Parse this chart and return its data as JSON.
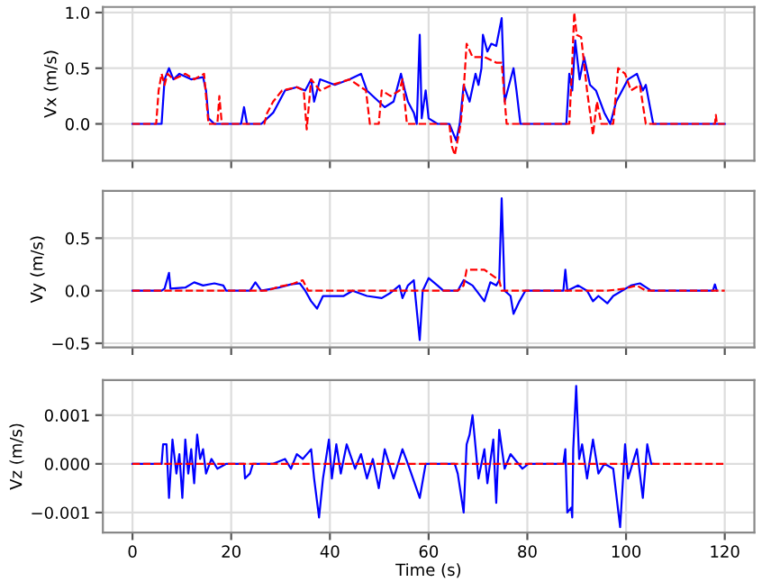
{
  "chart_data": [
    {
      "type": "line",
      "ylabel": "Vx (m/s)",
      "xlim": [
        -6,
        126
      ],
      "xticks": [
        0,
        20,
        40,
        60,
        80,
        100,
        120
      ],
      "ylim": [
        -0.33,
        1.05
      ],
      "yticks": [
        {
          "value": 0.0,
          "label": "0.0"
        },
        {
          "value": 0.5,
          "label": "0.5"
        },
        {
          "value": 1.0,
          "label": "1.0"
        }
      ],
      "grid": true,
      "tick_labels": "y",
      "series": [
        {
          "color": "#0000ff",
          "line_style": "solid",
          "x": [
            0,
            5.9,
            6.5,
            7.4,
            8.3,
            9.5,
            11.9,
            14.3,
            14.9,
            15.4,
            16.6,
            22.0,
            22.6,
            23.2,
            26.1,
            28.5,
            30.9,
            33.3,
            35.0,
            35.6,
            36.2,
            36.8,
            38.0,
            41.0,
            44.0,
            46.3,
            47.5,
            49.9,
            51.1,
            52.9,
            53.5,
            54.4,
            55.2,
            55.8,
            57.0,
            57.6,
            58.2,
            58.6,
            59.4,
            60.0,
            61.8,
            64.2,
            65.6,
            66.3,
            67.1,
            68.3,
            69.5,
            70.1,
            70.7,
            71.0,
            71.9,
            72.7,
            73.7,
            74.8,
            75.4,
            76.6,
            77.2,
            77.8,
            78.6,
            87.9,
            88.5,
            89.1,
            89.7,
            90.6,
            91.5,
            92.7,
            93.9,
            95.6,
            96.8,
            98.0,
            99.2,
            100.4,
            102.2,
            103.4,
            104.0,
            105.5,
            120
          ],
          "values": [
            0,
            0,
            0.4,
            0.5,
            0.4,
            0.45,
            0.4,
            0.42,
            0.3,
            0.05,
            0.0,
            0.0,
            0.15,
            0.0,
            0.0,
            0.1,
            0.3,
            0.33,
            0.3,
            0.35,
            0.4,
            0.2,
            0.4,
            0.35,
            0.4,
            0.45,
            0.3,
            0.2,
            0.15,
            0.2,
            0.3,
            0.45,
            0.3,
            0.2,
            0.1,
            0.0,
            0.8,
            0.05,
            0.3,
            0.05,
            0.0,
            0.0,
            -0.15,
            0.0,
            0.35,
            0.2,
            0.45,
            0.35,
            0.5,
            0.8,
            0.65,
            0.72,
            0.7,
            0.95,
            0.2,
            0.4,
            0.5,
            0.3,
            0.0,
            0.0,
            0.45,
            0.3,
            0.75,
            0.4,
            0.6,
            0.35,
            0.3,
            0.1,
            0.0,
            0.2,
            0.3,
            0.4,
            0.45,
            0.3,
            0.35,
            0.0,
            0.0
          ]
        },
        {
          "color": "#ff0000",
          "line_style": "dashed",
          "x": [
            0,
            4.8,
            5.3,
            5.9,
            6.5,
            7.1,
            8.3,
            10.7,
            12.5,
            14.5,
            15.4,
            17.2,
            17.6,
            18.1,
            26.7,
            27.3,
            28.5,
            30.3,
            33.3,
            34.7,
            35.3,
            36.2,
            38.0,
            40.4,
            44.0,
            47.3,
            48.1,
            49.9,
            50.5,
            52.3,
            54.1,
            54.7,
            55.6,
            64.2,
            64.7,
            65.3,
            66.5,
            67.1,
            67.7,
            68.9,
            71.3,
            73.7,
            74.8,
            75.8,
            88.5,
            89.1,
            89.5,
            90.0,
            90.9,
            92.1,
            93.3,
            94.1,
            95.0,
            97.4,
            98.4,
            99.8,
            101.0,
            102.8,
            104.0,
            118.0,
            118.2,
            118.4,
            120
          ],
          "values": [
            0,
            0,
            0.3,
            0.45,
            0.35,
            0.45,
            0.4,
            0.45,
            0.4,
            0.45,
            0.0,
            0.0,
            0.25,
            0.0,
            0.0,
            0.1,
            0.2,
            0.3,
            0.33,
            0.3,
            -0.05,
            0.4,
            0.3,
            0.35,
            0.4,
            0.3,
            0.0,
            0.0,
            0.3,
            0.25,
            0.3,
            0.4,
            0.0,
            0.0,
            -0.2,
            -0.28,
            0.0,
            0.3,
            0.72,
            0.6,
            0.6,
            0.55,
            0.55,
            0.0,
            0.0,
            0.55,
            1.0,
            0.8,
            0.78,
            0.3,
            -0.1,
            0.2,
            0.0,
            0.0,
            0.5,
            0.45,
            0.3,
            0.35,
            0.0,
            0.0,
            0.08,
            0.0,
            0.0
          ]
        }
      ]
    },
    {
      "type": "line",
      "ylabel": "Vy (m/s)",
      "xlim": [
        -6,
        126
      ],
      "xticks": [
        0,
        20,
        40,
        60,
        80,
        100,
        120
      ],
      "ylim": [
        -0.54,
        0.95
      ],
      "yticks": [
        {
          "value": -0.5,
          "label": "−0.5"
        },
        {
          "value": 0.0,
          "label": "0.0"
        },
        {
          "value": 0.5,
          "label": "0.5"
        }
      ],
      "grid": true,
      "tick_labels": "y",
      "series": [
        {
          "color": "#0000ff",
          "line_style": "solid",
          "x": [
            0,
            5.9,
            6.5,
            7.4,
            7.7,
            10.7,
            12.5,
            14.3,
            16.6,
            18.4,
            19.0,
            23.8,
            24.9,
            26.1,
            29.7,
            32.1,
            33.9,
            35.0,
            36.2,
            37.4,
            38.6,
            41.0,
            42.8,
            44.6,
            47.5,
            50.5,
            52.3,
            54.1,
            54.7,
            55.8,
            57.0,
            58.2,
            58.8,
            60.0,
            61.8,
            63.0,
            65.9,
            67.1,
            68.9,
            71.3,
            72.5,
            73.7,
            74.3,
            74.8,
            75.4,
            76.6,
            77.2,
            78.4,
            79.6,
            87.3,
            87.7,
            88.1,
            90.3,
            92.1,
            93.3,
            94.4,
            96.2,
            97.4,
            101.0,
            102.8,
            105.1,
            117.6,
            118.0,
            118.4
          ],
          "values": [
            0,
            0,
            0.02,
            0.17,
            0.02,
            0.03,
            0.08,
            0.05,
            0.07,
            0.05,
            0.0,
            0.0,
            0.08,
            0.0,
            0.03,
            0.06,
            0.07,
            0.0,
            -0.1,
            -0.17,
            -0.05,
            -0.05,
            -0.05,
            0.0,
            -0.05,
            -0.07,
            -0.02,
            0.05,
            -0.07,
            0.05,
            0.1,
            -0.47,
            0.0,
            0.12,
            0.05,
            0.0,
            0.0,
            0.1,
            0.05,
            -0.1,
            0.08,
            0.05,
            0.1,
            0.88,
            0.0,
            -0.05,
            -0.22,
            -0.1,
            0.0,
            0.0,
            0.2,
            0.0,
            0.05,
            0.0,
            -0.1,
            -0.05,
            -0.12,
            -0.05,
            0.05,
            0.07,
            0.0,
            0.0,
            0.06,
            0.0
          ]
        },
        {
          "color": "#ff0000",
          "line_style": "dashed",
          "x": [
            0,
            27.3,
            29.7,
            32.1,
            34.5,
            35.6,
            65.9,
            67.1,
            67.7,
            71.3,
            73.7,
            74.3,
            74.8,
            96.2,
            99.8,
            102.2,
            104.0,
            120
          ],
          "values": [
            0,
            0,
            0.04,
            0.06,
            0.1,
            0.0,
            0.0,
            0.05,
            0.2,
            0.2,
            0.12,
            0.1,
            0.0,
            0.0,
            0.02,
            0.05,
            0.0,
            0.0
          ]
        }
      ]
    },
    {
      "type": "line",
      "ylabel": "Vz (m/s)",
      "xlabel": "Time (s)",
      "xlim": [
        -6,
        126
      ],
      "xticks": [
        0,
        20,
        40,
        60,
        80,
        100,
        120
      ],
      "ylim": [
        -0.00141,
        0.00172
      ],
      "yticks": [
        {
          "value": -0.001,
          "label": "−0.001"
        },
        {
          "value": 0.0,
          "label": "0.000"
        },
        {
          "value": 0.001,
          "label": "0.001"
        }
      ],
      "grid": true,
      "series": [
        {
          "color": "#0000ff",
          "line_style": "solid",
          "x": [
            0,
            5.9,
            6.2,
            6.9,
            7.4,
            8.1,
            8.9,
            9.5,
            10.1,
            10.7,
            11.3,
            11.9,
            12.5,
            13.1,
            13.7,
            14.3,
            14.9,
            16.0,
            17.2,
            19.0,
            22.6,
            22.8,
            23.8,
            24.4,
            28.5,
            30.9,
            32.1,
            33.3,
            34.5,
            36.2,
            36.8,
            37.8,
            38.6,
            39.8,
            40.4,
            41.3,
            42.2,
            43.4,
            45.1,
            46.3,
            47.5,
            48.7,
            49.9,
            51.1,
            52.9,
            54.7,
            55.8,
            58.2,
            59.4,
            65.3,
            65.9,
            67.1,
            67.7,
            68.3,
            68.9,
            70.1,
            71.3,
            71.9,
            73.1,
            73.7,
            74.3,
            75.4,
            76.6,
            79.0,
            80.2,
            87.3,
            87.7,
            88.1,
            88.9,
            89.1,
            89.3,
            89.9,
            90.5,
            91.1,
            92.1,
            93.3,
            94.4,
            95.6,
            97.4,
            98.8,
            99.8,
            100.4,
            102.2,
            103.4,
            104.3,
            105.1,
            105.5
          ],
          "values": [
            0,
            0,
            0.0004,
            0.0004,
            -0.0007,
            0.0005,
            -0.0002,
            0.0002,
            -0.0007,
            0.0005,
            -0.0002,
            0.0003,
            -0.0004,
            0.0006,
            0.0001,
            0.0003,
            -0.0002,
            0.0001,
            -0.0001,
            0.0,
            0.0,
            -0.0003,
            -0.0002,
            0.0,
            0.0,
            0.0001,
            -0.0001,
            0.0002,
            0.0001,
            0.0003,
            -0.0003,
            -0.0011,
            -0.0003,
            0.0005,
            -0.0003,
            0.0004,
            -0.0002,
            0.0004,
            -0.0001,
            0.0002,
            -0.0003,
            0.0001,
            -0.0005,
            0.0003,
            -0.0003,
            0.0003,
            0.0,
            -0.0007,
            0.0,
            0.0,
            -0.0002,
            -0.001,
            0.0004,
            0.0006,
            0.001,
            -0.0003,
            0.0003,
            -0.0004,
            0.0005,
            -0.0008,
            0.0007,
            -0.0001,
            0.0002,
            -0.0001,
            0.0,
            0.0,
            0.0003,
            -0.001,
            -0.0009,
            -0.0011,
            0.0003,
            0.0016,
            0.0001,
            0.0004,
            -0.0003,
            0.0005,
            -0.0002,
            0.0,
            -0.0001,
            -0.0013,
            0.0004,
            -0.0003,
            0.0003,
            -0.0007,
            0.0004,
            0.0,
            0.0
          ]
        },
        {
          "color": "#ff0000",
          "line_style": "dashed",
          "x": [
            0,
            120
          ],
          "values": [
            0,
            0
          ]
        }
      ]
    }
  ]
}
